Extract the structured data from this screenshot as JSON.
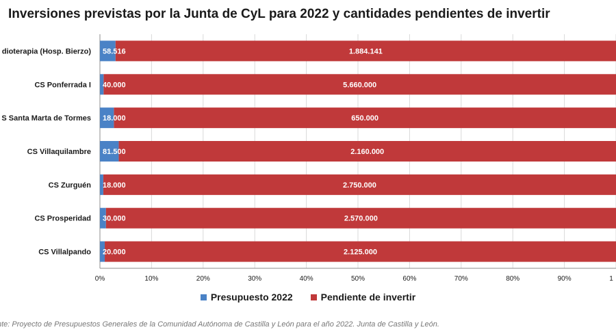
{
  "title": "Inversiones previstas por la Junta de CyL para 2022 y cantidades pendientes de invertir",
  "source": "nte: Proyecto de Presupuestos Generales de la Comunidad Autónoma de Castilla y León para el año 2022. Junta de Castilla y León.",
  "colors": {
    "presupuesto": "#4a82c6",
    "pendiente": "#c0393a",
    "grid": "#d9d9d9",
    "axis": "#8c8c8c"
  },
  "chart_data": {
    "type": "bar",
    "orientation": "horizontal",
    "stacked": "percent",
    "categories": [
      "dioterapia (Hosp. Bierzo)",
      "CS Ponferrada I",
      "S Santa Marta de Tormes",
      "CS Villaquilambre",
      "CS Zurguén",
      "CS Prosperidad",
      "CS Villalpando"
    ],
    "series": [
      {
        "name": "Presupuesto 2022",
        "values": [
          58516,
          40000,
          18000,
          81500,
          18000,
          30000,
          20000
        ],
        "labels": [
          "58.516",
          "40.000",
          "18.000",
          "81.500",
          "18.000",
          "30.000",
          "20.000"
        ]
      },
      {
        "name": "Pendiente de invertir",
        "values": [
          1884141,
          5660000,
          650000,
          2160000,
          2750000,
          2570000,
          2125000
        ],
        "labels": [
          "1.884.141",
          "5.660.000",
          "650.000",
          "2.160.000",
          "2.750.000",
          "2.570.000",
          "2.125.000"
        ]
      }
    ],
    "xlim": [
      0,
      1
    ],
    "x_ticks": [
      "0%",
      "10%",
      "20%",
      "30%",
      "40%",
      "50%",
      "60%",
      "70%",
      "80%",
      "90%",
      "1"
    ],
    "grid": true,
    "legend": "bottom"
  }
}
